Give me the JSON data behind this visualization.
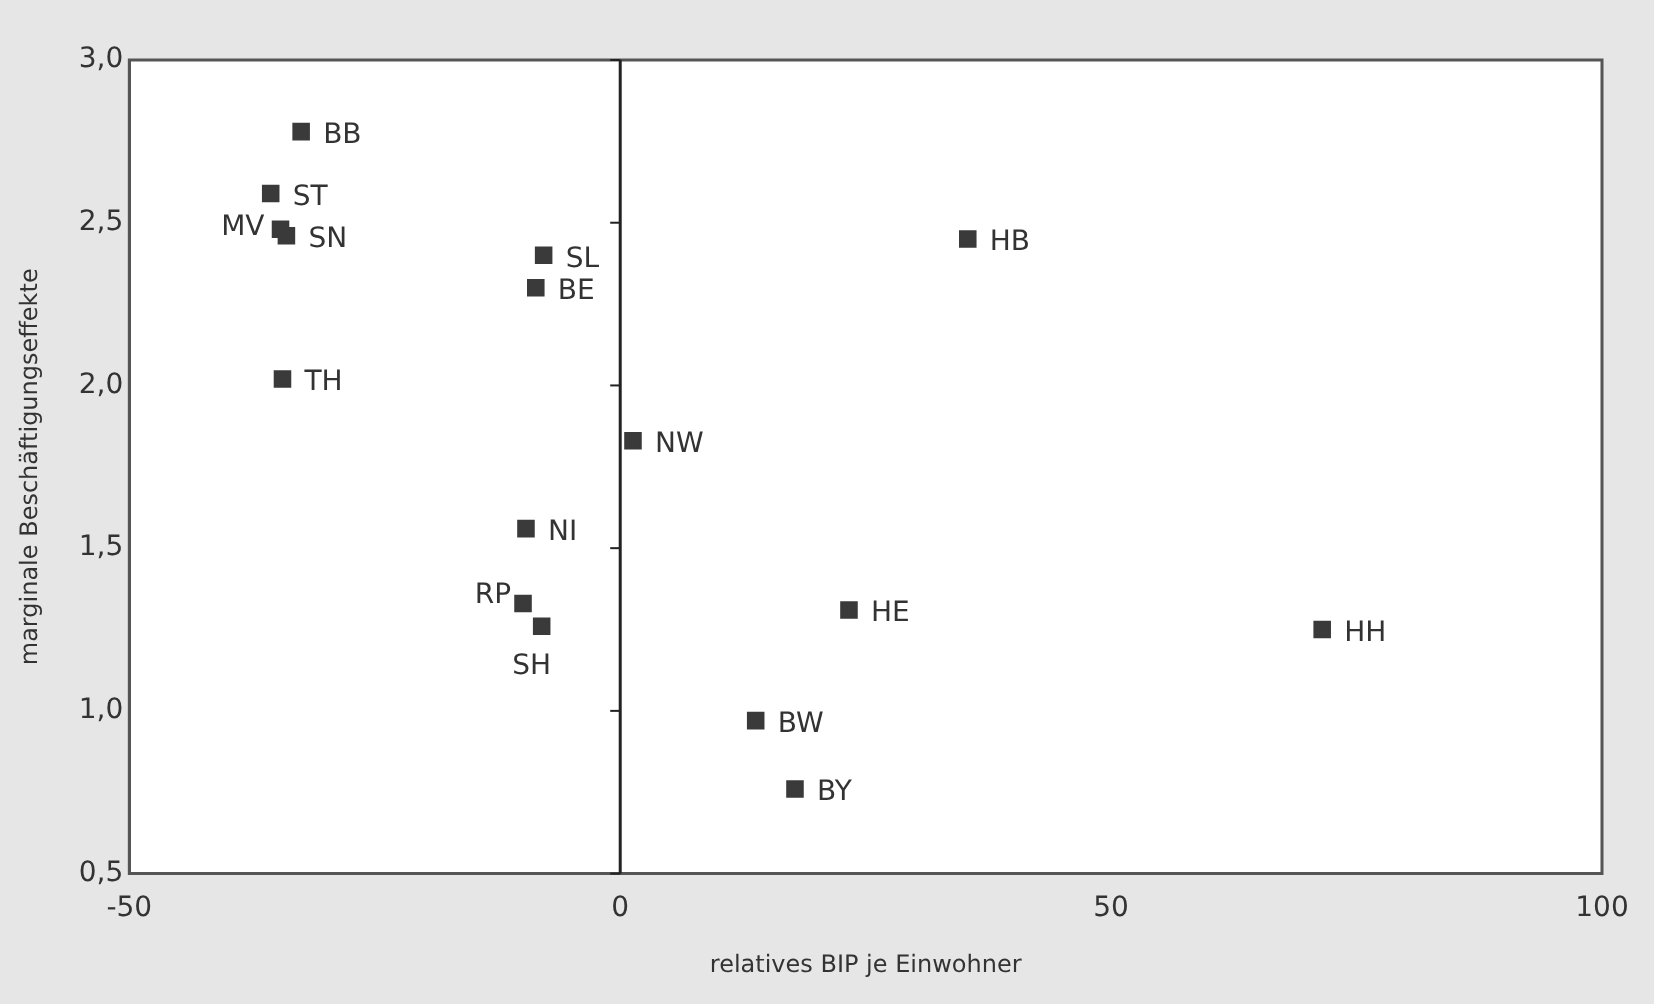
{
  "chart_data": {
    "type": "scatter",
    "xlabel": "relatives BIP je Einwohner",
    "ylabel": "marginale Beschäftigungseffekte",
    "x": [
      -32.5,
      -35.6,
      -34.6,
      -34.0,
      -7.8,
      -8.6,
      -34.4,
      1.3,
      -9.6,
      -9.9,
      -8.0,
      35.4,
      23.3,
      71.5,
      13.8,
      17.8
    ],
    "values": [
      2.78,
      2.59,
      2.48,
      2.46,
      2.4,
      2.3,
      2.02,
      1.83,
      1.56,
      1.33,
      1.26,
      2.45,
      1.31,
      1.25,
      0.97,
      0.76
    ],
    "value_labels": [
      "BB",
      "ST",
      "MV",
      "SN",
      "SL",
      "BE",
      "TH",
      "NW",
      "NI",
      "RP",
      "SH",
      "HB",
      "HE",
      "HH",
      "BW",
      "BY"
    ],
    "color": "#3a3a3a",
    "marker": "square",
    "xlim": [
      -50,
      100
    ],
    "xticks": [
      -50,
      0,
      50,
      100
    ],
    "ylim": [
      0.5,
      3.0
    ],
    "yticks": [
      {
        "value": 0.5,
        "label": "0,5"
      },
      {
        "value": 1.0,
        "label": "1,0"
      },
      {
        "value": 1.5,
        "label": "1,5"
      },
      {
        "value": 2.0,
        "label": "2,0"
      },
      {
        "value": 2.5,
        "label": "2,5"
      },
      {
        "value": 3.0,
        "label": "3,0"
      }
    ],
    "ref_lines": [
      {
        "axis": "x",
        "value": 0,
        "label": null
      }
    ],
    "grid": false,
    "legend": false
  }
}
